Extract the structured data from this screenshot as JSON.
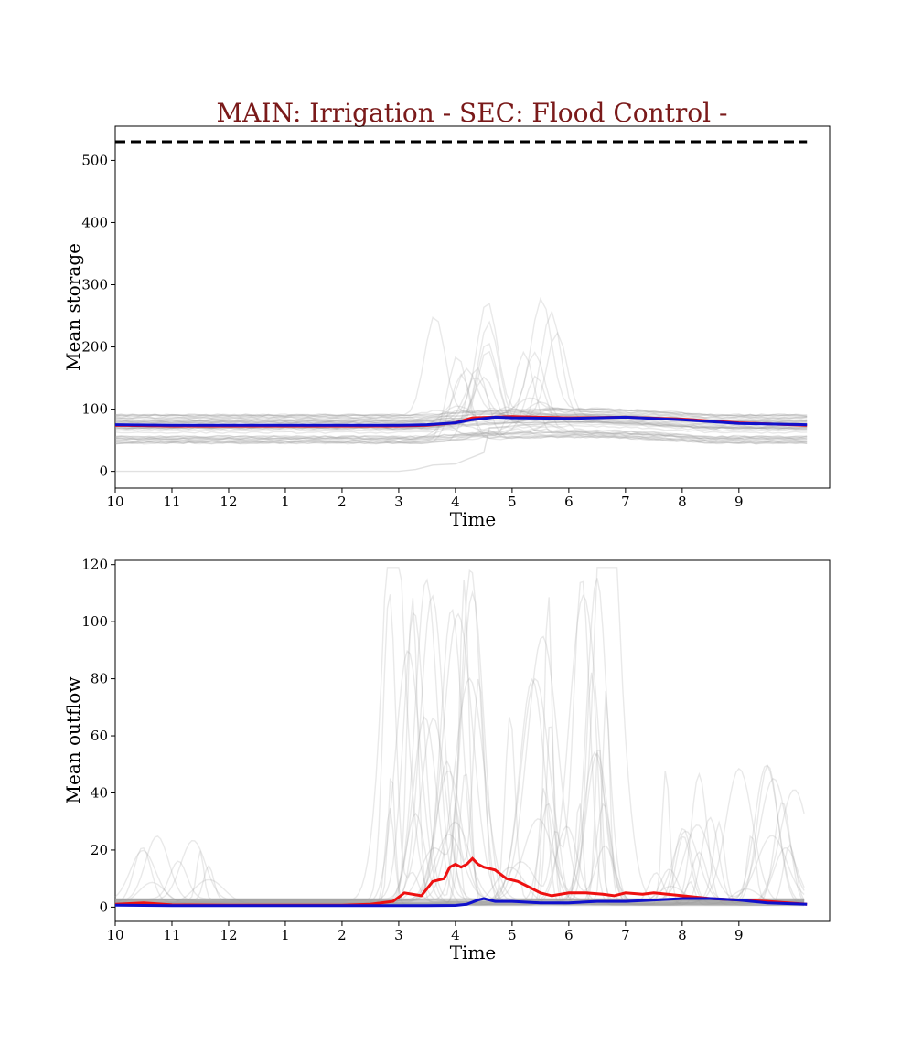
{
  "title": "MAIN: Irrigation - SEC: Flood Control -",
  "title_color": "#7a1a1a",
  "colors": {
    "ensemble": "#9a9a9a",
    "red_series": "#ee1111",
    "blue_series": "#1010cc",
    "reference": "#000000"
  },
  "chart_data": [
    {
      "type": "line",
      "title": "MAIN: Irrigation - SEC: Flood Control -",
      "xlabel": "Time",
      "ylabel": "Mean storage",
      "xlim": [
        0,
        12.6
      ],
      "ylim": [
        -27,
        555
      ],
      "x_ticks": [
        0,
        1,
        2,
        3,
        4,
        5,
        6,
        7,
        8,
        9,
        10,
        11
      ],
      "x_tick_labels": [
        "10",
        "11",
        "12",
        "1",
        "2",
        "3",
        "4",
        "5",
        "6",
        "7",
        "8",
        "9"
      ],
      "y_ticks": [
        0,
        100,
        200,
        300,
        400,
        500
      ],
      "y_tick_labels": [
        "0",
        "100",
        "200",
        "300",
        "400",
        "500"
      ],
      "grid": false,
      "reference_line": {
        "style": "dashed",
        "y": 530,
        "x": [
          0,
          12.2
        ]
      },
      "series": [
        {
          "color": "#ee1111",
          "x": [
            0,
            1,
            2,
            3,
            4,
            5,
            5.5,
            6,
            6.3,
            7,
            8,
            9,
            10,
            11,
            12.2
          ],
          "y": [
            74,
            73,
            73,
            73,
            73,
            73,
            74,
            78,
            86,
            88,
            86,
            87,
            84,
            78,
            74
          ]
        },
        {
          "color": "#1010cc",
          "x": [
            0,
            1,
            2,
            3,
            4,
            5,
            5.5,
            6,
            6.3,
            6.7,
            7,
            8,
            9,
            10,
            11,
            12.2
          ],
          "y": [
            75,
            74,
            74,
            74,
            74,
            74,
            75,
            78,
            83,
            87,
            86,
            85,
            87,
            83,
            77,
            75
          ]
        }
      ]
    },
    {
      "type": "line",
      "xlabel": "Time",
      "ylabel": "Mean outflow",
      "xlim": [
        0,
        12.6
      ],
      "ylim": [
        -5,
        121.5
      ],
      "x_ticks": [
        0,
        1,
        2,
        3,
        4,
        5,
        6,
        7,
        8,
        9,
        10,
        11
      ],
      "x_tick_labels": [
        "10",
        "11",
        "12",
        "1",
        "2",
        "3",
        "4",
        "5",
        "6",
        "7",
        "8",
        "9"
      ],
      "y_ticks": [
        0,
        20,
        40,
        60,
        80,
        100,
        120
      ],
      "y_tick_labels": [
        "0",
        "20",
        "40",
        "60",
        "80",
        "100",
        "120"
      ],
      "grid": false,
      "series": [
        {
          "color": "#ee1111",
          "x": [
            0,
            0.5,
            1,
            2,
            3,
            4,
            4.5,
            4.9,
            5.1,
            5.4,
            5.6,
            5.8,
            5.9,
            6.0,
            6.1,
            6.2,
            6.3,
            6.4,
            6.5,
            6.7,
            6.9,
            7.1,
            7.3,
            7.5,
            7.7,
            8.0,
            8.3,
            8.6,
            8.8,
            9.0,
            9.3,
            9.5,
            10,
            10.5,
            11,
            11.5,
            12.2
          ],
          "y": [
            1,
            1.5,
            0.8,
            0.7,
            0.7,
            0.7,
            1,
            2,
            5,
            4,
            9,
            10,
            14,
            15,
            14,
            15,
            17,
            15,
            14,
            13,
            10,
            9,
            7,
            5,
            4,
            5,
            5,
            4.5,
            4,
            5,
            4.5,
            5,
            4,
            3,
            2.5,
            2,
            1
          ]
        },
        {
          "color": "#1010cc",
          "x": [
            0,
            1,
            2,
            3,
            4,
            5,
            5.5,
            6,
            6.2,
            6.4,
            6.5,
            6.7,
            7,
            7.5,
            8,
            8.5,
            9,
            9.5,
            10,
            10.5,
            11,
            11.5,
            12.2
          ],
          "y": [
            0.7,
            0.5,
            0.5,
            0.5,
            0.5,
            0.5,
            0.5,
            0.6,
            1,
            2.5,
            3,
            2,
            2,
            1.5,
            1.5,
            2,
            2,
            2.5,
            3,
            3,
            2.5,
            1.5,
            1
          ]
        }
      ]
    }
  ]
}
